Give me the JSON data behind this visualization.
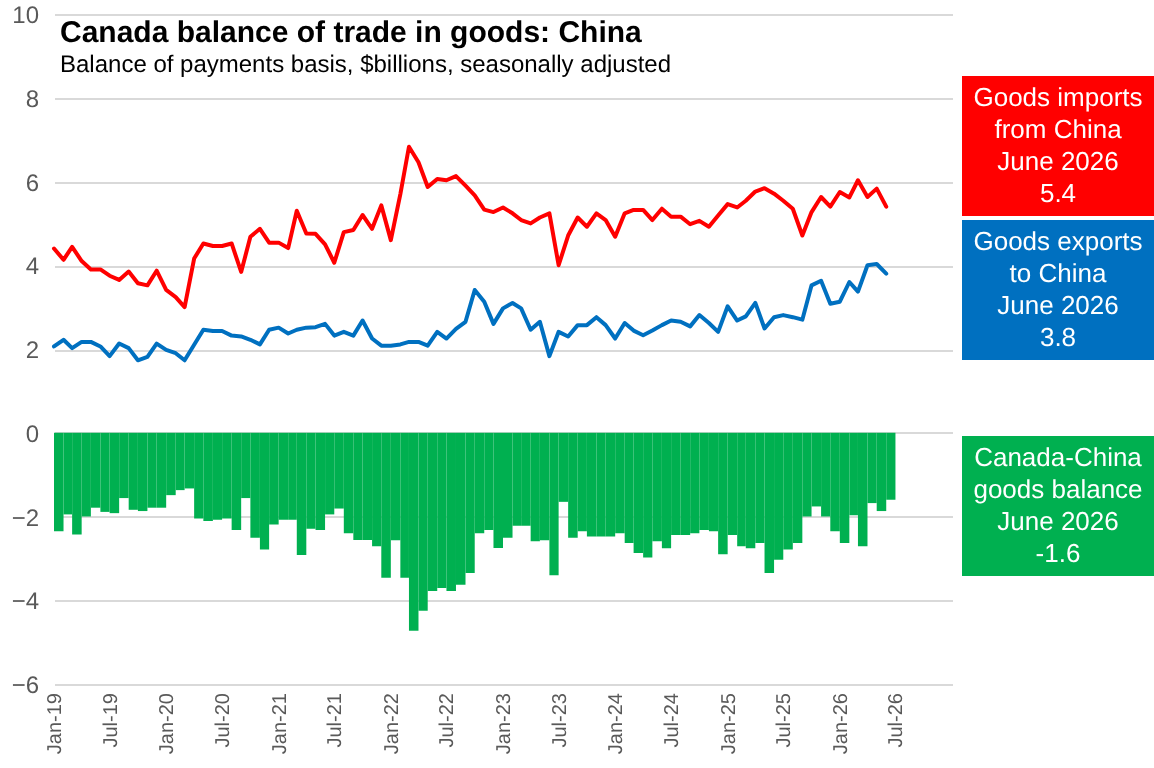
{
  "chart_data": {
    "type": "line",
    "title": "Canada balance of trade in goods: China",
    "subtitle": "Balance of payments basis, $billions, seasonally adjusted",
    "x": [
      "2019-01",
      "2019-02",
      "2019-03",
      "2019-04",
      "2019-05",
      "2019-06",
      "2019-07",
      "2019-08",
      "2019-09",
      "2019-10",
      "2019-11",
      "2019-12",
      "2020-01",
      "2020-02",
      "2020-03",
      "2020-04",
      "2020-05",
      "2020-06",
      "2020-07",
      "2020-08",
      "2020-09",
      "2020-10",
      "2020-11",
      "2020-12",
      "2021-01",
      "2021-02",
      "2021-03",
      "2021-04",
      "2021-05",
      "2021-06",
      "2021-07",
      "2021-08",
      "2021-09",
      "2021-10",
      "2021-11",
      "2021-12",
      "2022-01",
      "2022-02",
      "2022-03",
      "2022-04",
      "2022-05",
      "2022-06",
      "2022-07",
      "2022-08",
      "2022-09",
      "2022-10",
      "2022-11",
      "2022-12",
      "2023-01",
      "2023-02",
      "2023-03",
      "2023-04",
      "2023-05",
      "2023-06",
      "2023-07",
      "2023-08",
      "2023-09",
      "2023-10",
      "2023-11",
      "2023-12",
      "2024-01",
      "2024-02",
      "2024-03",
      "2024-04",
      "2024-05",
      "2024-06",
      "2024-07",
      "2024-08",
      "2024-09",
      "2024-10",
      "2024-11",
      "2024-12",
      "2025-01",
      "2025-02",
      "2025-03",
      "2025-04",
      "2025-05",
      "2025-06",
      "2025-07",
      "2025-08",
      "2025-09",
      "2025-10",
      "2025-11",
      "2025-12",
      "2026-01",
      "2026-02",
      "2026-03",
      "2026-04",
      "2026-05",
      "2026-06"
    ],
    "series": [
      {
        "name": "Goods imports from China",
        "color": "#ff0000",
        "values": [
          4.4,
          4.13,
          4.44,
          4.1,
          3.9,
          3.9,
          3.75,
          3.65,
          3.85,
          3.57,
          3.52,
          3.87,
          3.41,
          3.24,
          3.0,
          4.16,
          4.52,
          4.46,
          4.46,
          4.52,
          3.84,
          4.68,
          4.87,
          4.54,
          4.54,
          4.41,
          5.3,
          4.76,
          4.75,
          4.5,
          4.06,
          4.79,
          4.84,
          5.2,
          4.87,
          5.43,
          4.6,
          5.7,
          6.83,
          6.46,
          5.87,
          6.06,
          6.03,
          6.13,
          5.9,
          5.67,
          5.33,
          5.27,
          5.38,
          5.24,
          5.08,
          5.0,
          5.14,
          5.24,
          4.0,
          4.71,
          5.14,
          4.92,
          5.24,
          5.08,
          4.68,
          5.24,
          5.32,
          5.32,
          5.08,
          5.35,
          5.16,
          5.16,
          4.98,
          5.06,
          4.92,
          5.19,
          5.46,
          5.38,
          5.54,
          5.76,
          5.84,
          5.71,
          5.54,
          5.35,
          4.71,
          5.27,
          5.63,
          5.4,
          5.75,
          5.62,
          6.03,
          5.63,
          5.83,
          5.4
        ]
      },
      {
        "name": "Goods exports to China",
        "color": "#0070c0",
        "values": [
          2.06,
          2.22,
          2.02,
          2.17,
          2.17,
          2.06,
          1.83,
          2.13,
          2.02,
          1.73,
          1.81,
          2.13,
          1.98,
          1.9,
          1.73,
          2.1,
          2.46,
          2.43,
          2.43,
          2.32,
          2.3,
          2.22,
          2.11,
          2.46,
          2.51,
          2.37,
          2.46,
          2.51,
          2.52,
          2.6,
          2.32,
          2.41,
          2.32,
          2.68,
          2.25,
          2.08,
          2.08,
          2.11,
          2.17,
          2.17,
          2.08,
          2.41,
          2.25,
          2.48,
          2.65,
          3.41,
          3.13,
          2.6,
          2.97,
          3.1,
          2.97,
          2.46,
          2.65,
          1.83,
          2.41,
          2.3,
          2.57,
          2.57,
          2.76,
          2.57,
          2.25,
          2.62,
          2.44,
          2.33,
          2.44,
          2.57,
          2.68,
          2.65,
          2.54,
          2.81,
          2.62,
          2.41,
          3.02,
          2.68,
          2.78,
          3.1,
          2.49,
          2.76,
          2.81,
          2.76,
          2.7,
          3.52,
          3.63,
          3.08,
          3.13,
          3.6,
          3.37,
          4.0,
          4.03,
          3.8
        ]
      },
      {
        "name": "Canada-China goods balance",
        "type": "bar",
        "color": "#00b050",
        "values": [
          -2.35,
          -1.95,
          -2.43,
          -2.0,
          -1.79,
          -1.89,
          -1.92,
          -1.56,
          -1.84,
          -1.87,
          -1.79,
          -1.79,
          -1.49,
          -1.37,
          -1.33,
          -2.05,
          -2.11,
          -2.08,
          -2.05,
          -2.32,
          -1.56,
          -2.51,
          -2.79,
          -2.19,
          -2.08,
          -2.08,
          -2.92,
          -2.29,
          -2.32,
          -1.95,
          -1.81,
          -2.4,
          -2.56,
          -2.56,
          -2.71,
          -3.46,
          -2.57,
          -3.46,
          -4.73,
          -4.25,
          -3.78,
          -3.71,
          -3.78,
          -3.63,
          -3.35,
          -2.4,
          -2.32,
          -2.75,
          -2.51,
          -2.22,
          -2.22,
          -2.59,
          -2.57,
          -3.4,
          -1.65,
          -2.51,
          -2.35,
          -2.48,
          -2.48,
          -2.48,
          -2.4,
          -2.63,
          -2.87,
          -2.98,
          -2.59,
          -2.76,
          -2.44,
          -2.44,
          -2.4,
          -2.32,
          -2.35,
          -2.9,
          -2.44,
          -2.71,
          -2.76,
          -2.63,
          -3.35,
          -3.03,
          -2.79,
          -2.63,
          -2.0,
          -1.76,
          -2.0,
          -2.35,
          -2.63,
          -1.97,
          -2.71,
          -1.68,
          -1.87,
          -1.6
        ]
      }
    ],
    "annotations": [
      "June 2026",
      "5.4",
      "June 2026",
      "3.8",
      "June 2026",
      "-1.6"
    ],
    "xlim": [
      "2019-01",
      "2027-01"
    ],
    "xticks": [
      {
        "value": "2019-01",
        "label": "Jan-19"
      },
      {
        "value": "2019-07",
        "label": "Jul-19"
      },
      {
        "value": "2020-01",
        "label": "Jan-20"
      },
      {
        "value": "2020-07",
        "label": "Jul-20"
      },
      {
        "value": "2021-01",
        "label": "Jan-21"
      },
      {
        "value": "2021-07",
        "label": "Jul-21"
      },
      {
        "value": "2022-01",
        "label": "Jan-22"
      },
      {
        "value": "2022-07",
        "label": "Jul-22"
      },
      {
        "value": "2023-01",
        "label": "Jan-23"
      },
      {
        "value": "2023-07",
        "label": "Jul-23"
      },
      {
        "value": "2024-01",
        "label": "Jan-24"
      },
      {
        "value": "2024-07",
        "label": "Jul-24"
      },
      {
        "value": "2025-01",
        "label": "Jan-25"
      },
      {
        "value": "2025-07",
        "label": "Jul-25"
      },
      {
        "value": "2026-01",
        "label": "Jan-26"
      },
      {
        "value": "2026-07",
        "label": "Jul-26"
      }
    ],
    "ylim": [
      -6,
      10
    ],
    "yticks": [
      -6,
      -4,
      -2,
      0,
      2,
      4,
      6,
      8,
      10
    ],
    "grid": "y",
    "line_style": "solid"
  }
}
